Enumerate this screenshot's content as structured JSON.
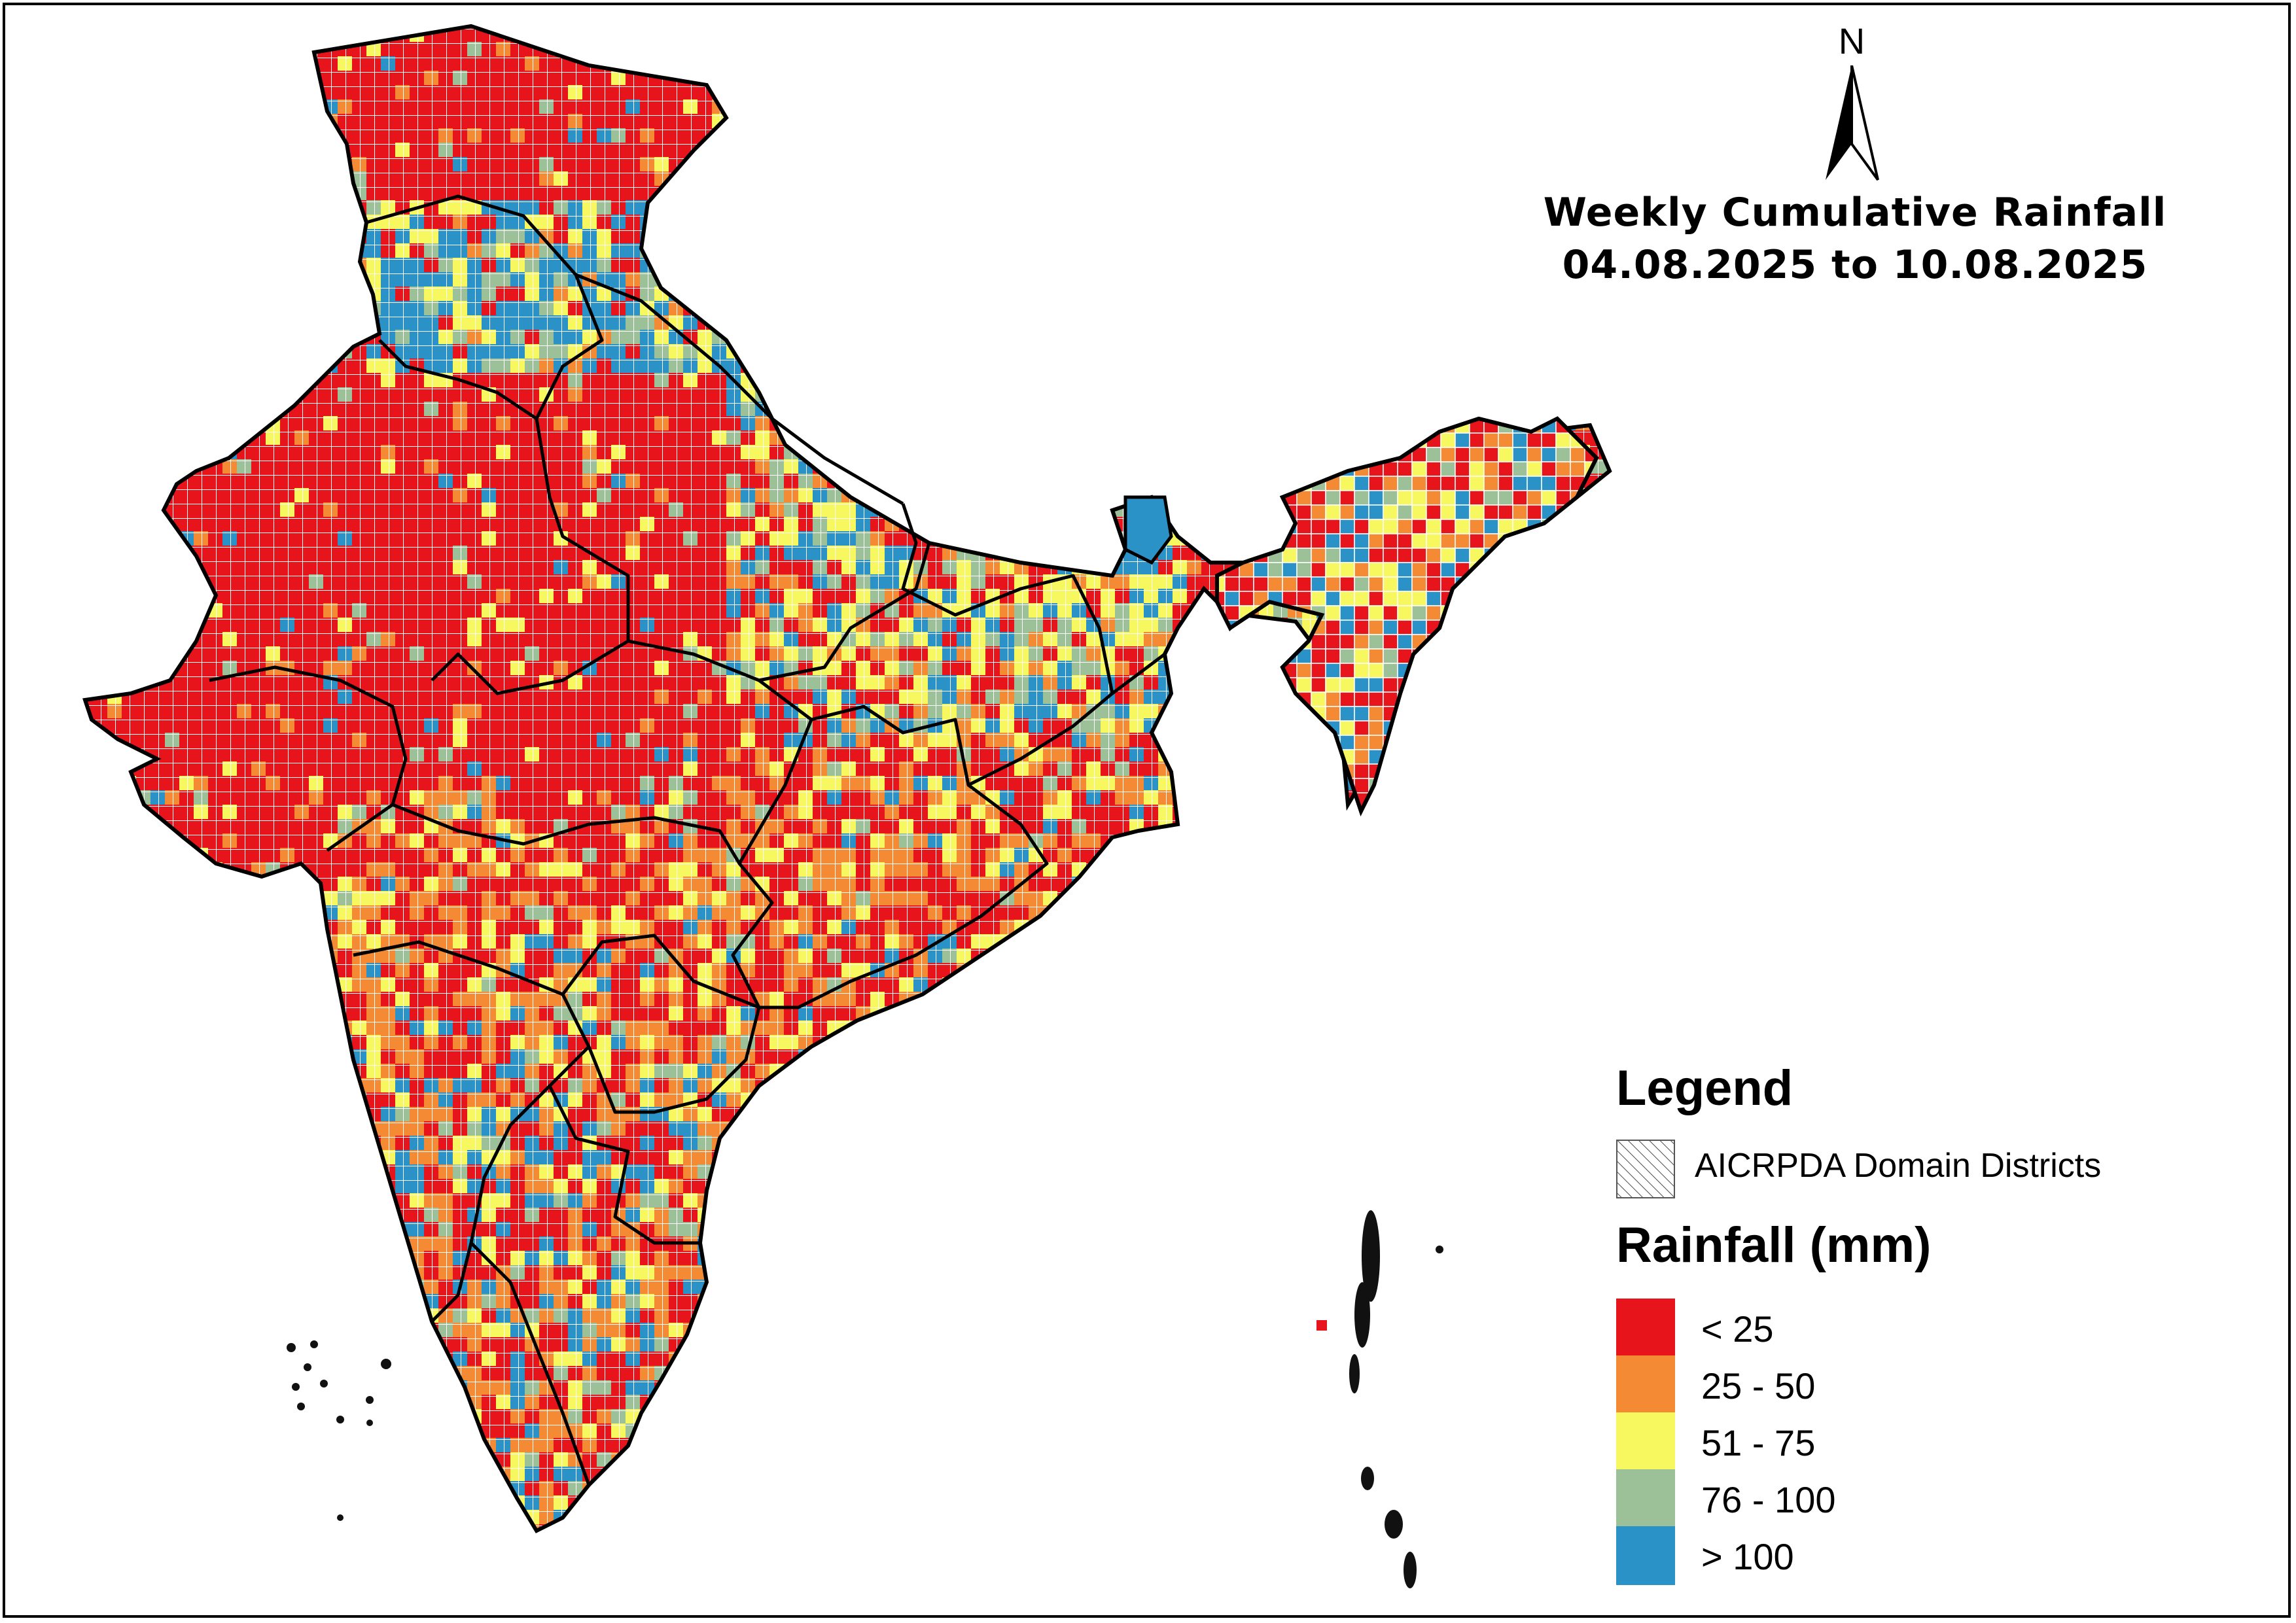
{
  "title": {
    "line1": "Weekly Cumulative Rainfall",
    "line2": "04.08.2025 to 10.08.2025"
  },
  "north_arrow": {
    "label": "N"
  },
  "legend": {
    "title": "Legend",
    "hatch_label": "AICRPDA Domain Districts",
    "rainfall_title": "Rainfall (mm)",
    "classes": [
      {
        "label": "< 25",
        "color": "#e8141c"
      },
      {
        "label": "25 - 50",
        "color": "#f58a35"
      },
      {
        "label": "51 - 75",
        "color": "#f7f760"
      },
      {
        "label": "76 - 100",
        "color": "#9cc097"
      },
      {
        "label": "> 100",
        "color": "#2b92c8"
      }
    ]
  },
  "map": {
    "region": "India",
    "content": "gridded weekly cumulative rainfall with state boundaries",
    "outline_color": "#000000",
    "grid_line_color": "#ffffff"
  }
}
